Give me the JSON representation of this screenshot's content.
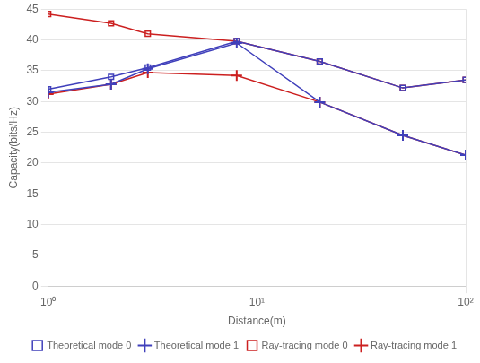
{
  "chart_data": {
    "type": "line",
    "xlabel": "Distance(m)",
    "ylabel": "Capacity(bits/Hz)",
    "x": [
      1,
      2,
      3,
      8,
      20,
      50,
      100
    ],
    "series": [
      {
        "name": "Theoretical mode 0",
        "color": "#4040bb",
        "marker": "square",
        "values": [
          32.0,
          34.0,
          35.5,
          39.8,
          36.5,
          32.2,
          33.5
        ]
      },
      {
        "name": "Theoretical mode 1",
        "color": "#4040bb",
        "marker": "plus",
        "values": [
          31.5,
          32.8,
          35.3,
          39.5,
          29.9,
          24.5,
          21.3
        ]
      },
      {
        "name": "Ray-tracing mode 0",
        "color": "#cc2020",
        "marker": "square",
        "values": [
          44.2,
          42.7,
          41.0,
          39.8,
          36.5,
          32.2,
          33.5
        ]
      },
      {
        "name": "Ray-tracing mode 1",
        "color": "#cc2020",
        "marker": "plus",
        "values": [
          31.2,
          32.8,
          34.7,
          34.2,
          29.9,
          24.5,
          21.3
        ]
      }
    ],
    "log": "x",
    "xlim": [
      1,
      100
    ],
    "xticks": [
      {
        "value": 1,
        "label": "10⁰"
      },
      {
        "value": 10,
        "label": "10¹"
      },
      {
        "value": 100,
        "label": "10²"
      }
    ],
    "ylim": [
      0,
      45
    ],
    "yticks": [
      0,
      5,
      10,
      15,
      20,
      25,
      30,
      35,
      40,
      45
    ],
    "grid": true,
    "legend": "lower right"
  }
}
